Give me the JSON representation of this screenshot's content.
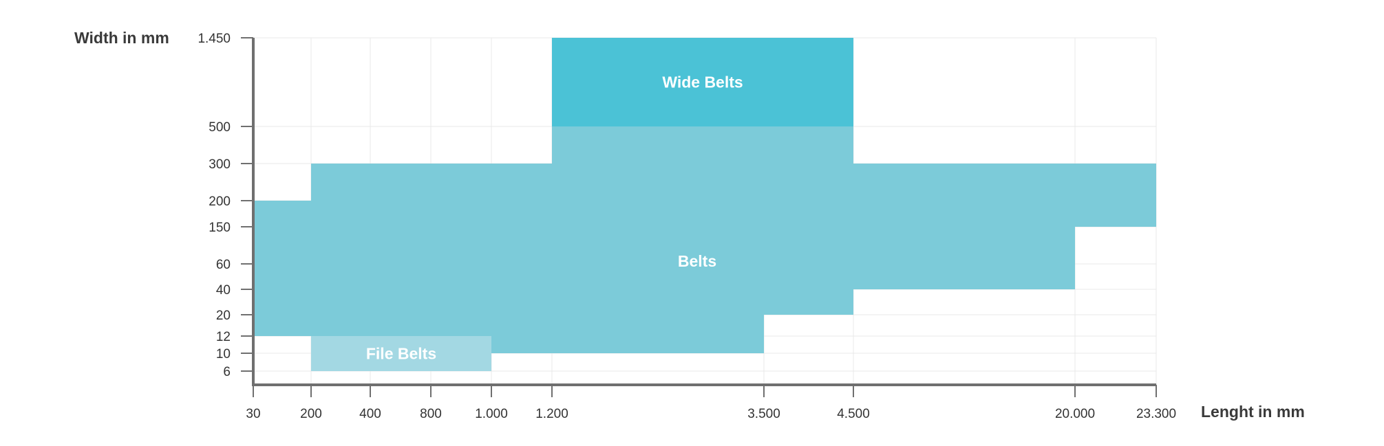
{
  "chart_data": {
    "type": "area",
    "title": "",
    "xlabel": "Lenght in mm",
    "ylabel": "Width in mm",
    "x_ticks": [
      "30",
      "200",
      "400",
      "800",
      "1.000",
      "1.200",
      "3.500",
      "4.500",
      "20.000",
      "23.300"
    ],
    "y_ticks": [
      "6",
      "10",
      "12",
      "20",
      "40",
      "60",
      "150",
      "200",
      "300",
      "500",
      "1.450"
    ],
    "x_scale": "categorical-ticks",
    "y_scale": "categorical-ticks",
    "grid": true,
    "regions": [
      {
        "name": "Belts",
        "color": "#7ccbd9",
        "outline": [
          [
            "30",
            "12"
          ],
          [
            "30",
            "200"
          ],
          [
            "200",
            "200"
          ],
          [
            "200",
            "300"
          ],
          [
            "1.200",
            "300"
          ],
          [
            "1.200",
            "500"
          ],
          [
            "4.500",
            "500"
          ],
          [
            "4.500",
            "300"
          ],
          [
            "23.300",
            "300"
          ],
          [
            "23.300",
            "150"
          ],
          [
            "20.000",
            "150"
          ],
          [
            "20.000",
            "40"
          ],
          [
            "4.500",
            "40"
          ],
          [
            "4.500",
            "20"
          ],
          [
            "3.500",
            "20"
          ],
          [
            "3.500",
            "10"
          ],
          [
            "1.000",
            "10"
          ],
          [
            "1.000",
            "12"
          ],
          [
            "30",
            "12"
          ]
        ]
      },
      {
        "name": "Wide Belts",
        "color": "#4bc2d6",
        "outline": [
          [
            "1.200",
            "500"
          ],
          [
            "1.200",
            "1.450"
          ],
          [
            "4.500",
            "1.450"
          ],
          [
            "4.500",
            "500"
          ]
        ]
      },
      {
        "name": "File Belts",
        "color": "#a3d8e3",
        "outline": [
          [
            "200",
            "6"
          ],
          [
            "200",
            "12"
          ],
          [
            "1.000",
            "12"
          ],
          [
            "1.000",
            "6"
          ]
        ]
      }
    ]
  }
}
